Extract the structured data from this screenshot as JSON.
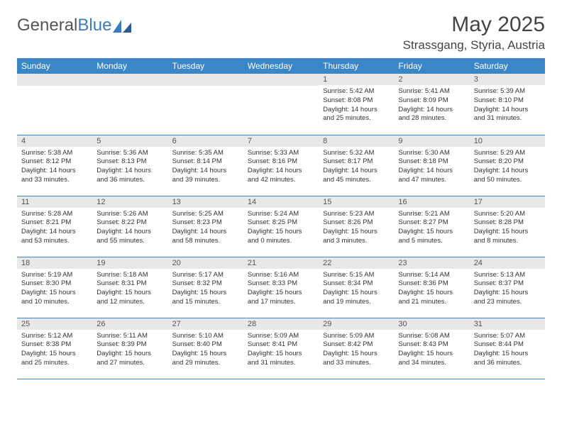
{
  "logo": {
    "text1": "General",
    "text2": "Blue"
  },
  "title": "May 2025",
  "subtitle": "Strassgang, Styria, Austria",
  "columns": [
    "Sunday",
    "Monday",
    "Tuesday",
    "Wednesday",
    "Thursday",
    "Friday",
    "Saturday"
  ],
  "colors": {
    "header_bg": "#3b86c7",
    "header_fg": "#ffffff",
    "daynum_bg": "#e8e8e8",
    "border": "#3b86c7",
    "logo_blue": "#3b7bbf",
    "text": "#333333"
  },
  "weeks": [
    [
      {
        "n": "",
        "empty": true
      },
      {
        "n": "",
        "empty": true
      },
      {
        "n": "",
        "empty": true
      },
      {
        "n": "",
        "empty": true
      },
      {
        "n": "1",
        "sunrise": "5:42 AM",
        "sunset": "8:08 PM",
        "daylight": "14 hours and 25 minutes."
      },
      {
        "n": "2",
        "sunrise": "5:41 AM",
        "sunset": "8:09 PM",
        "daylight": "14 hours and 28 minutes."
      },
      {
        "n": "3",
        "sunrise": "5:39 AM",
        "sunset": "8:10 PM",
        "daylight": "14 hours and 31 minutes."
      }
    ],
    [
      {
        "n": "4",
        "sunrise": "5:38 AM",
        "sunset": "8:12 PM",
        "daylight": "14 hours and 33 minutes."
      },
      {
        "n": "5",
        "sunrise": "5:36 AM",
        "sunset": "8:13 PM",
        "daylight": "14 hours and 36 minutes."
      },
      {
        "n": "6",
        "sunrise": "5:35 AM",
        "sunset": "8:14 PM",
        "daylight": "14 hours and 39 minutes."
      },
      {
        "n": "7",
        "sunrise": "5:33 AM",
        "sunset": "8:16 PM",
        "daylight": "14 hours and 42 minutes."
      },
      {
        "n": "8",
        "sunrise": "5:32 AM",
        "sunset": "8:17 PM",
        "daylight": "14 hours and 45 minutes."
      },
      {
        "n": "9",
        "sunrise": "5:30 AM",
        "sunset": "8:18 PM",
        "daylight": "14 hours and 47 minutes."
      },
      {
        "n": "10",
        "sunrise": "5:29 AM",
        "sunset": "8:20 PM",
        "daylight": "14 hours and 50 minutes."
      }
    ],
    [
      {
        "n": "11",
        "sunrise": "5:28 AM",
        "sunset": "8:21 PM",
        "daylight": "14 hours and 53 minutes."
      },
      {
        "n": "12",
        "sunrise": "5:26 AM",
        "sunset": "8:22 PM",
        "daylight": "14 hours and 55 minutes."
      },
      {
        "n": "13",
        "sunrise": "5:25 AM",
        "sunset": "8:23 PM",
        "daylight": "14 hours and 58 minutes."
      },
      {
        "n": "14",
        "sunrise": "5:24 AM",
        "sunset": "8:25 PM",
        "daylight": "15 hours and 0 minutes."
      },
      {
        "n": "15",
        "sunrise": "5:23 AM",
        "sunset": "8:26 PM",
        "daylight": "15 hours and 3 minutes."
      },
      {
        "n": "16",
        "sunrise": "5:21 AM",
        "sunset": "8:27 PM",
        "daylight": "15 hours and 5 minutes."
      },
      {
        "n": "17",
        "sunrise": "5:20 AM",
        "sunset": "8:28 PM",
        "daylight": "15 hours and 8 minutes."
      }
    ],
    [
      {
        "n": "18",
        "sunrise": "5:19 AM",
        "sunset": "8:30 PM",
        "daylight": "15 hours and 10 minutes."
      },
      {
        "n": "19",
        "sunrise": "5:18 AM",
        "sunset": "8:31 PM",
        "daylight": "15 hours and 12 minutes."
      },
      {
        "n": "20",
        "sunrise": "5:17 AM",
        "sunset": "8:32 PM",
        "daylight": "15 hours and 15 minutes."
      },
      {
        "n": "21",
        "sunrise": "5:16 AM",
        "sunset": "8:33 PM",
        "daylight": "15 hours and 17 minutes."
      },
      {
        "n": "22",
        "sunrise": "5:15 AM",
        "sunset": "8:34 PM",
        "daylight": "15 hours and 19 minutes."
      },
      {
        "n": "23",
        "sunrise": "5:14 AM",
        "sunset": "8:36 PM",
        "daylight": "15 hours and 21 minutes."
      },
      {
        "n": "24",
        "sunrise": "5:13 AM",
        "sunset": "8:37 PM",
        "daylight": "15 hours and 23 minutes."
      }
    ],
    [
      {
        "n": "25",
        "sunrise": "5:12 AM",
        "sunset": "8:38 PM",
        "daylight": "15 hours and 25 minutes."
      },
      {
        "n": "26",
        "sunrise": "5:11 AM",
        "sunset": "8:39 PM",
        "daylight": "15 hours and 27 minutes."
      },
      {
        "n": "27",
        "sunrise": "5:10 AM",
        "sunset": "8:40 PM",
        "daylight": "15 hours and 29 minutes."
      },
      {
        "n": "28",
        "sunrise": "5:09 AM",
        "sunset": "8:41 PM",
        "daylight": "15 hours and 31 minutes."
      },
      {
        "n": "29",
        "sunrise": "5:09 AM",
        "sunset": "8:42 PM",
        "daylight": "15 hours and 33 minutes."
      },
      {
        "n": "30",
        "sunrise": "5:08 AM",
        "sunset": "8:43 PM",
        "daylight": "15 hours and 34 minutes."
      },
      {
        "n": "31",
        "sunrise": "5:07 AM",
        "sunset": "8:44 PM",
        "daylight": "15 hours and 36 minutes."
      }
    ]
  ]
}
